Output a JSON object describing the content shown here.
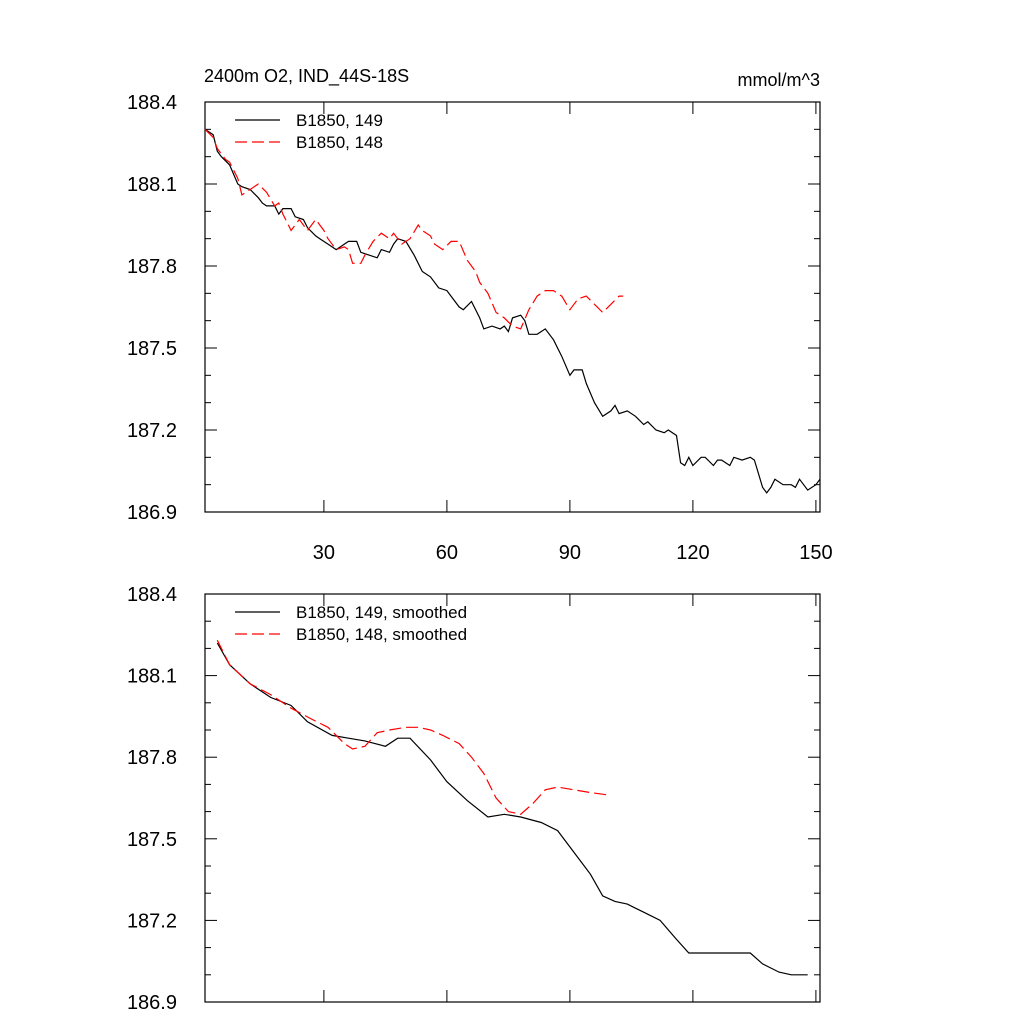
{
  "chart_data": [
    {
      "type": "line",
      "title": "2400m O2, IND_44S-18S",
      "units": "mmol/m^3",
      "xlim": [
        1,
        151
      ],
      "ylim": [
        186.9,
        188.4
      ],
      "xticks": [
        30,
        60,
        90,
        120,
        150
      ],
      "yticks": [
        186.9,
        187.2,
        187.5,
        187.8,
        188.1,
        188.4
      ],
      "xtick_labels": [
        "30",
        "60",
        "90",
        "120",
        "150"
      ],
      "ytick_labels": [
        "186.9",
        "187.2",
        "187.5",
        "187.8",
        "188.1",
        "188.4"
      ],
      "series": [
        {
          "name": "B1850, 149",
          "color": "#000000",
          "dash": "solid",
          "points": [
            [
              1,
              188.3
            ],
            [
              3,
              188.28
            ],
            [
              4,
              188.22
            ],
            [
              5,
              188.2
            ],
            [
              7,
              188.17
            ],
            [
              9,
              188.1
            ],
            [
              10,
              188.09
            ],
            [
              12,
              188.08
            ],
            [
              14,
              188.05
            ],
            [
              15,
              188.03
            ],
            [
              16,
              188.02
            ],
            [
              18,
              188.02
            ],
            [
              19,
              187.99
            ],
            [
              20,
              188.01
            ],
            [
              22,
              188.01
            ],
            [
              23,
              187.98
            ],
            [
              25,
              187.97
            ],
            [
              26,
              187.94
            ],
            [
              28,
              187.91
            ],
            [
              29,
              187.9
            ],
            [
              31,
              187.88
            ],
            [
              33,
              187.86
            ],
            [
              34,
              187.87
            ],
            [
              36,
              187.89
            ],
            [
              38,
              187.89
            ],
            [
              39,
              187.85
            ],
            [
              41,
              187.84
            ],
            [
              43,
              187.83
            ],
            [
              44,
              187.86
            ],
            [
              46,
              187.85
            ],
            [
              47,
              187.88
            ],
            [
              48,
              187.9
            ],
            [
              50,
              187.89
            ],
            [
              52,
              187.84
            ],
            [
              54,
              187.78
            ],
            [
              56,
              187.76
            ],
            [
              58,
              187.72
            ],
            [
              60,
              187.71
            ],
            [
              61,
              187.69
            ],
            [
              63,
              187.65
            ],
            [
              64,
              187.64
            ],
            [
              66,
              187.67
            ],
            [
              68,
              187.61
            ],
            [
              69,
              187.57
            ],
            [
              71,
              187.58
            ],
            [
              73,
              187.57
            ],
            [
              74,
              187.58
            ],
            [
              75,
              187.56
            ],
            [
              76,
              187.61
            ],
            [
              78,
              187.62
            ],
            [
              79,
              187.6
            ],
            [
              80,
              187.55
            ],
            [
              82,
              187.55
            ],
            [
              84,
              187.57
            ],
            [
              86,
              187.53
            ],
            [
              88,
              187.47
            ],
            [
              90,
              187.4
            ],
            [
              91,
              187.42
            ],
            [
              93,
              187.42
            ],
            [
              94,
              187.37
            ],
            [
              96,
              187.3
            ],
            [
              98,
              187.25
            ],
            [
              100,
              187.27
            ],
            [
              101,
              187.29
            ],
            [
              102,
              187.26
            ],
            [
              104,
              187.27
            ],
            [
              106,
              187.25
            ],
            [
              108,
              187.22
            ],
            [
              109,
              187.23
            ],
            [
              111,
              187.2
            ],
            [
              113,
              187.19
            ],
            [
              114,
              187.2
            ],
            [
              116,
              187.18
            ],
            [
              117,
              187.08
            ],
            [
              118,
              187.07
            ],
            [
              119,
              187.1
            ],
            [
              120,
              187.07
            ],
            [
              122,
              187.1
            ],
            [
              123,
              187.1
            ],
            [
              125,
              187.07
            ],
            [
              126,
              187.09
            ],
            [
              127,
              187.09
            ],
            [
              129,
              187.07
            ],
            [
              130,
              187.1
            ],
            [
              132,
              187.09
            ],
            [
              134,
              187.1
            ],
            [
              135,
              187.09
            ],
            [
              137,
              186.99
            ],
            [
              138,
              186.97
            ],
            [
              139,
              186.99
            ],
            [
              140,
              187.02
            ],
            [
              142,
              187.0
            ],
            [
              144,
              187.0
            ],
            [
              145,
              186.99
            ],
            [
              146,
              187.02
            ],
            [
              148,
              186.98
            ],
            [
              150,
              187.0
            ],
            [
              151,
              187.02
            ]
          ]
        },
        {
          "name": "B1850, 148",
          "color": "#ff0000",
          "dash": "dashed",
          "points": [
            [
              1,
              188.3
            ],
            [
              3,
              188.27
            ],
            [
              4,
              188.23
            ],
            [
              6,
              188.19
            ],
            [
              7,
              188.18
            ],
            [
              9,
              188.12
            ],
            [
              10,
              188.06
            ],
            [
              12,
              188.08
            ],
            [
              14,
              188.1
            ],
            [
              16,
              188.07
            ],
            [
              18,
              188.02
            ],
            [
              19,
              188.03
            ],
            [
              20,
              187.99
            ],
            [
              22,
              187.93
            ],
            [
              24,
              187.97
            ],
            [
              26,
              187.93
            ],
            [
              28,
              187.97
            ],
            [
              30,
              187.93
            ],
            [
              31,
              187.9
            ],
            [
              33,
              187.86
            ],
            [
              35,
              187.87
            ],
            [
              36,
              187.86
            ],
            [
              37,
              187.81
            ],
            [
              39,
              187.81
            ],
            [
              40,
              187.84
            ],
            [
              42,
              187.89
            ],
            [
              44,
              187.92
            ],
            [
              46,
              187.9
            ],
            [
              47,
              187.92
            ],
            [
              49,
              187.88
            ],
            [
              51,
              187.9
            ],
            [
              53,
              187.95
            ],
            [
              54,
              187.93
            ],
            [
              56,
              187.91
            ],
            [
              57,
              187.88
            ],
            [
              59,
              187.86
            ],
            [
              61,
              187.89
            ],
            [
              63,
              187.89
            ],
            [
              65,
              187.82
            ],
            [
              67,
              187.78
            ],
            [
              68,
              187.74
            ],
            [
              70,
              187.7
            ],
            [
              72,
              187.63
            ],
            [
              74,
              187.61
            ],
            [
              76,
              187.58
            ],
            [
              78,
              187.57
            ],
            [
              80,
              187.64
            ],
            [
              82,
              187.69
            ],
            [
              84,
              187.71
            ],
            [
              86,
              187.71
            ],
            [
              88,
              187.69
            ],
            [
              90,
              187.64
            ],
            [
              92,
              187.68
            ],
            [
              94,
              187.69
            ],
            [
              96,
              187.66
            ],
            [
              98,
              187.63
            ],
            [
              100,
              187.66
            ],
            [
              102,
              187.69
            ],
            [
              103,
              187.69
            ]
          ]
        }
      ]
    },
    {
      "type": "line",
      "title": "",
      "xlim": [
        1,
        151
      ],
      "ylim": [
        186.9,
        188.4
      ],
      "xticks": [
        30,
        60,
        90,
        120,
        150
      ],
      "yticks": [
        186.9,
        187.2,
        187.5,
        187.8,
        188.1,
        188.4
      ],
      "xtick_labels": [],
      "ytick_labels": [
        "186.9",
        "187.2",
        "187.5",
        "187.8",
        "188.1",
        "188.4"
      ],
      "series": [
        {
          "name": "B1850, 149, smoothed",
          "color": "#000000",
          "dash": "solid",
          "points": [
            [
              4,
              188.22
            ],
            [
              7,
              188.14
            ],
            [
              12,
              188.07
            ],
            [
              17,
              188.02
            ],
            [
              22,
              187.99
            ],
            [
              26,
              187.93
            ],
            [
              32,
              187.88
            ],
            [
              36,
              187.87
            ],
            [
              40,
              187.86
            ],
            [
              45,
              187.84
            ],
            [
              48,
              187.87
            ],
            [
              51,
              187.87
            ],
            [
              56,
              187.79
            ],
            [
              60,
              187.71
            ],
            [
              65,
              187.64
            ],
            [
              70,
              187.58
            ],
            [
              74,
              187.59
            ],
            [
              78,
              187.58
            ],
            [
              83,
              187.56
            ],
            [
              87,
              187.53
            ],
            [
              91,
              187.45
            ],
            [
              95,
              187.37
            ],
            [
              98,
              187.29
            ],
            [
              101,
              187.27
            ],
            [
              104,
              187.26
            ],
            [
              108,
              187.23
            ],
            [
              112,
              187.2
            ],
            [
              116,
              187.13
            ],
            [
              119,
              187.08
            ],
            [
              123,
              187.08
            ],
            [
              127,
              187.08
            ],
            [
              131,
              187.08
            ],
            [
              134,
              187.08
            ],
            [
              137,
              187.04
            ],
            [
              141,
              187.01
            ],
            [
              144,
              187.0
            ],
            [
              148,
              187.0
            ]
          ]
        },
        {
          "name": "B1850, 148, smoothed",
          "color": "#ff0000",
          "dash": "dashed",
          "points": [
            [
              4,
              188.23
            ],
            [
              7,
              188.14
            ],
            [
              12,
              188.07
            ],
            [
              17,
              188.03
            ],
            [
              22,
              187.98
            ],
            [
              27,
              187.94
            ],
            [
              31,
              187.91
            ],
            [
              35,
              187.85
            ],
            [
              37,
              187.83
            ],
            [
              40,
              187.84
            ],
            [
              43,
              187.89
            ],
            [
              46,
              187.9
            ],
            [
              50,
              187.91
            ],
            [
              53,
              187.91
            ],
            [
              56,
              187.9
            ],
            [
              59,
              187.88
            ],
            [
              63,
              187.85
            ],
            [
              66,
              187.8
            ],
            [
              69,
              187.74
            ],
            [
              72,
              187.65
            ],
            [
              75,
              187.6
            ],
            [
              78,
              187.59
            ],
            [
              81,
              187.63
            ],
            [
              84,
              187.68
            ],
            [
              87,
              187.69
            ],
            [
              91,
              187.68
            ],
            [
              95,
              187.67
            ],
            [
              100,
              187.66
            ]
          ]
        }
      ]
    }
  ]
}
